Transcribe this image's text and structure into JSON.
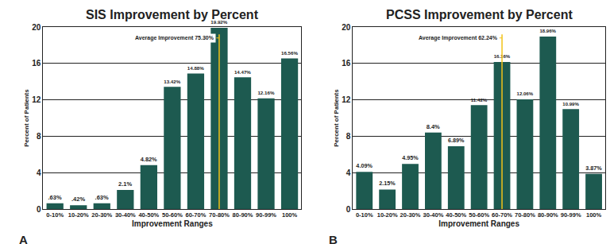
{
  "chart_data": [
    {
      "type": "bar",
      "title": "SIS Improvement by Percent",
      "panel_label": "A",
      "x_label": "Improvement Ranges",
      "y_label": "Percent of Patients",
      "categories": [
        "0-10%",
        "10-20%",
        "20-30%",
        "30-40%",
        "40-50%",
        "50-60%",
        "60-70%",
        "70-80%",
        "80-90%",
        "90-99%",
        "100%"
      ],
      "values": [
        0.63,
        0.42,
        0.63,
        2.1,
        4.82,
        13.42,
        14.88,
        19.92,
        14.47,
        12.16,
        16.56
      ],
      "value_labels": [
        ".63%",
        ".42%",
        ".63%",
        "2.1%",
        "4.82%",
        "13.42%",
        "14.88%",
        "19.92%",
        "14.47%",
        "12.16%",
        "16.56%"
      ],
      "data_labels": true,
      "color": "#1d5a50",
      "ylim": [
        0,
        20
      ],
      "yticks": [
        0,
        4,
        8,
        12,
        16,
        20
      ],
      "grid": true,
      "annotations": [
        {
          "text": "Average Improvement 75.30%",
          "x": 7,
          "color": "#f2c318"
        }
      ]
    },
    {
      "type": "bar",
      "title": "PCSS Improvement by Percent",
      "panel_label": "B",
      "x_label": "Improvement Ranges",
      "y_label": "Percent of Patients",
      "categories": [
        "0-10%",
        "10-20%",
        "20-30%",
        "30-40%",
        "40-50%",
        "50-60%",
        "60-70%",
        "70-80%",
        "80-90%",
        "90-99%",
        "100%"
      ],
      "values": [
        4.09,
        2.15,
        4.95,
        8.4,
        6.89,
        11.42,
        16.16,
        12.06,
        18.96,
        10.99,
        3.87
      ],
      "value_labels": [
        "4.09%",
        "2.15%",
        "4.95%",
        "8.4%",
        "6.89%",
        "11.42%",
        "16.16%",
        "12.06%",
        "18.96%",
        "10.99%",
        "3.87%"
      ],
      "data_labels": true,
      "color": "#1d5a50",
      "ylim": [
        0,
        20
      ],
      "yticks": [
        0,
        4,
        8,
        12,
        16,
        20
      ],
      "grid": true,
      "annotations": [
        {
          "text": "Average Improvement 62.24%",
          "x": 6,
          "color": "#f2c318"
        }
      ]
    }
  ]
}
